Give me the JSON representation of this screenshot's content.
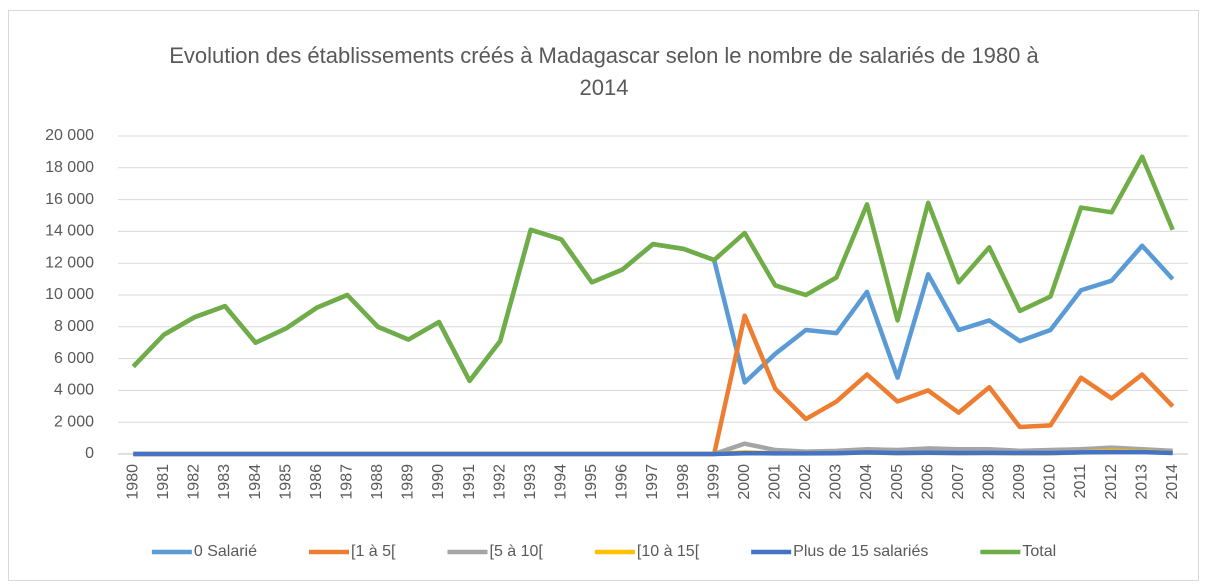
{
  "chart_data": {
    "type": "line",
    "title": "Evolution des établissements créés à Madagascar selon le nombre de salariés de 1980 à 2014",
    "categories": [
      "1980",
      "1981",
      "1982",
      "1983",
      "1984",
      "1985",
      "1986",
      "1987",
      "1988",
      "1989",
      "1990",
      "1991",
      "1992",
      "1993",
      "1994",
      "1995",
      "1996",
      "1997",
      "1998",
      "1999",
      "2000",
      "2001",
      "2002",
      "2003",
      "2004",
      "2005",
      "2006",
      "2007",
      "2008",
      "2009",
      "2010",
      "2011",
      "2012",
      "2013",
      "2014"
    ],
    "series": [
      {
        "name": "0 Salarié",
        "color": "#5b9bd5",
        "values": [
          5500,
          7500,
          8600,
          9300,
          7000,
          7900,
          9200,
          10000,
          8000,
          7200,
          8300,
          4600,
          7100,
          14100,
          13500,
          10800,
          11600,
          13200,
          12900,
          12200,
          4500,
          6300,
          7800,
          7600,
          10200,
          4800,
          11300,
          7800,
          8400,
          7100,
          7800,
          10300,
          10900,
          13100,
          11000
        ]
      },
      {
        "name": "[1 à 5[",
        "color": "#ed7d31",
        "values": [
          0,
          0,
          0,
          0,
          0,
          0,
          0,
          0,
          0,
          0,
          0,
          0,
          0,
          0,
          0,
          0,
          0,
          0,
          0,
          0,
          8700,
          4100,
          2200,
          3300,
          5000,
          3300,
          4000,
          2600,
          4200,
          1700,
          1800,
          4800,
          3500,
          5000,
          3000
        ]
      },
      {
        "name": "[5 à 10[",
        "color": "#a5a5a5",
        "values": [
          0,
          0,
          0,
          0,
          0,
          0,
          0,
          0,
          0,
          0,
          0,
          0,
          0,
          0,
          0,
          0,
          0,
          0,
          0,
          0,
          650,
          250,
          150,
          200,
          300,
          250,
          350,
          300,
          300,
          200,
          250,
          300,
          400,
          300,
          200
        ]
      },
      {
        "name": "[10 à 15[",
        "color": "#ffc000",
        "values": [
          0,
          0,
          0,
          0,
          0,
          0,
          0,
          0,
          0,
          0,
          0,
          0,
          0,
          0,
          0,
          0,
          0,
          0,
          0,
          0,
          100,
          50,
          50,
          50,
          100,
          50,
          80,
          50,
          60,
          50,
          50,
          100,
          200,
          150,
          80
        ]
      },
      {
        "name": "Plus de 15 salariés",
        "color": "#4472c4",
        "values": [
          0,
          0,
          0,
          0,
          0,
          0,
          0,
          0,
          0,
          0,
          0,
          0,
          0,
          0,
          0,
          0,
          0,
          0,
          0,
          0,
          50,
          40,
          40,
          50,
          100,
          60,
          80,
          60,
          70,
          60,
          60,
          100,
          120,
          120,
          60
        ]
      },
      {
        "name": "Total",
        "color": "#70ad47",
        "values": [
          5500,
          7500,
          8600,
          9300,
          7000,
          7900,
          9200,
          10000,
          8000,
          7200,
          8300,
          4600,
          7100,
          14100,
          13500,
          10800,
          11600,
          13200,
          12900,
          12200,
          13900,
          10600,
          10000,
          11100,
          15700,
          8400,
          15800,
          10800,
          13000,
          9000,
          9900,
          15500,
          15200,
          18700,
          14100
        ]
      }
    ],
    "ylim": [
      0,
      20000
    ],
    "yticks": [
      0,
      {
        "value": 2000,
        "label": "2 000"
      },
      {
        "value": 4000,
        "label": "4 000"
      },
      {
        "value": 6000,
        "label": "6 000"
      },
      {
        "value": 8000,
        "label": "8 000"
      },
      {
        "value": 10000,
        "label": "10 000"
      },
      {
        "value": 12000,
        "label": "12 000"
      },
      {
        "value": 14000,
        "label": "14 000"
      },
      {
        "value": 16000,
        "label": "16 000"
      },
      {
        "value": 18000,
        "label": "18 000"
      },
      {
        "value": 20000,
        "label": "20 000"
      }
    ],
    "grid": true,
    "legend": "bottom"
  }
}
